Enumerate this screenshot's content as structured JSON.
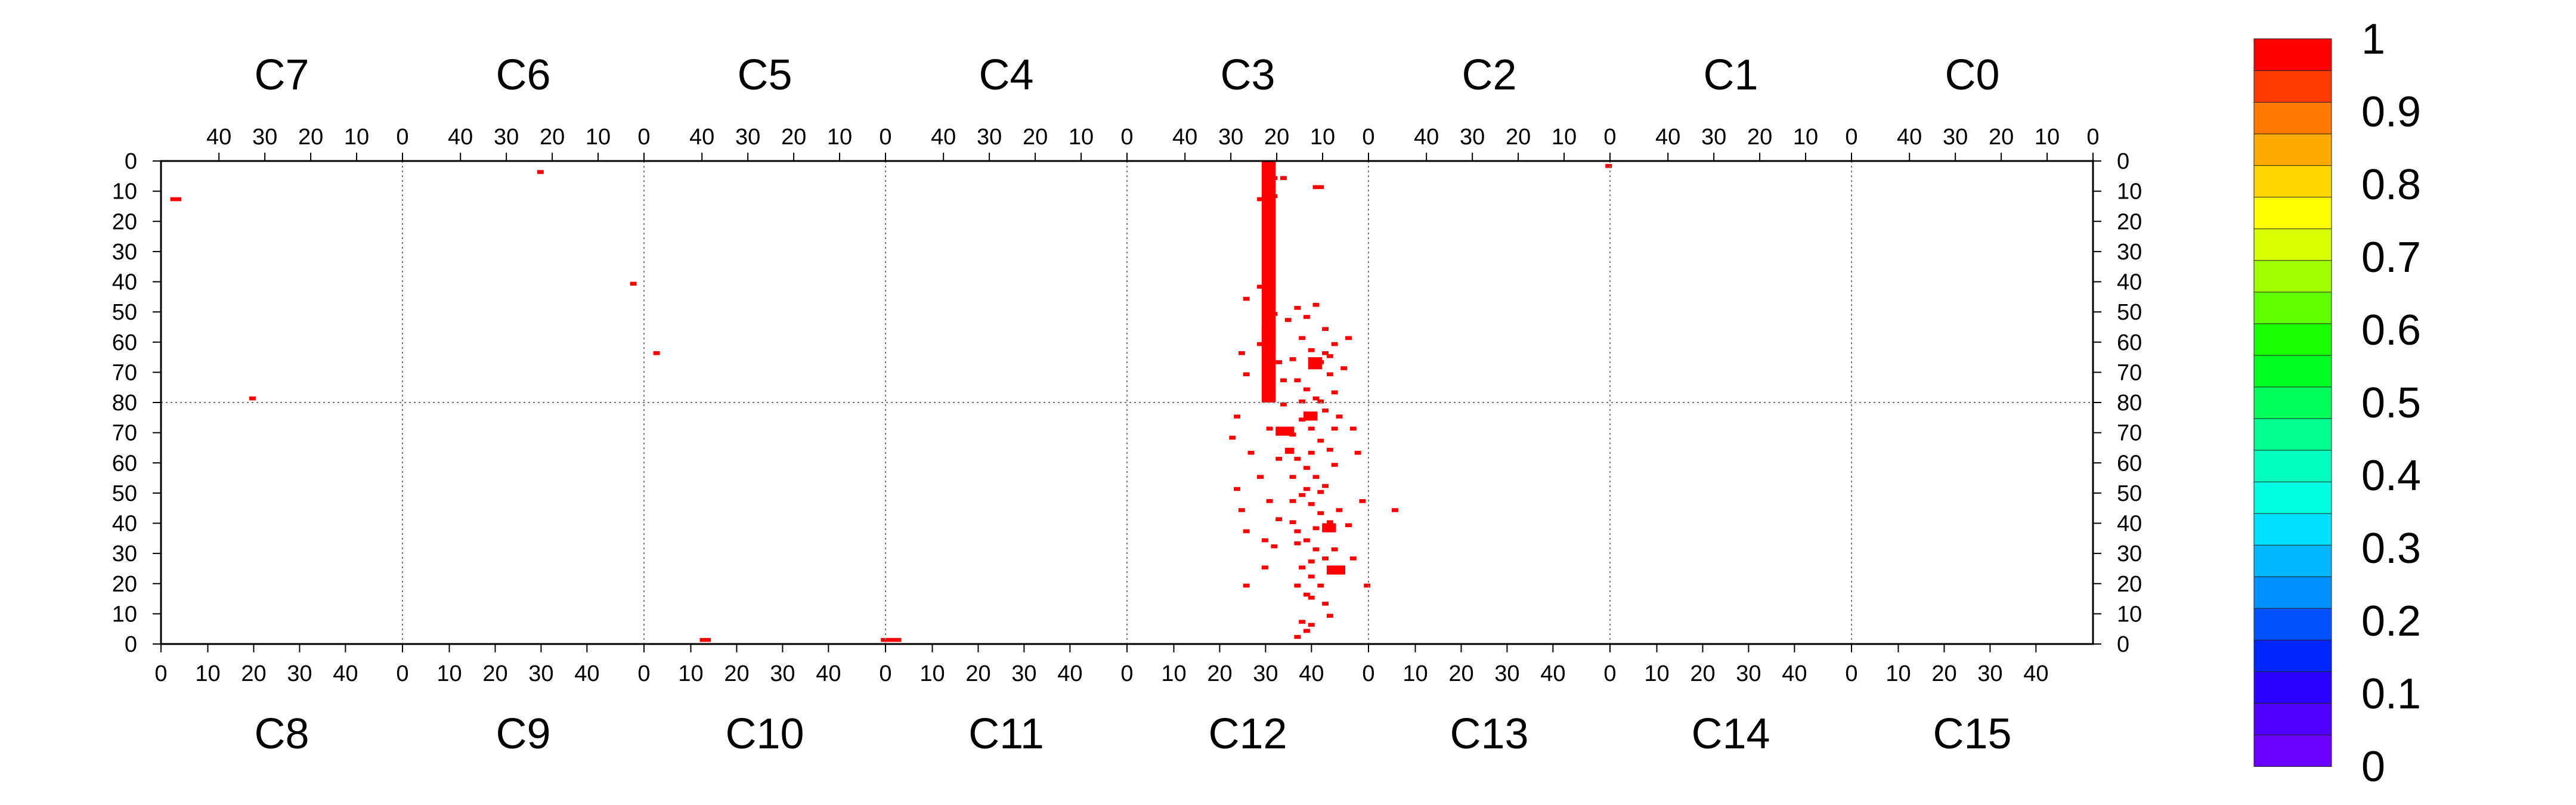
{
  "chart_data": {
    "type": "heatmap",
    "title": "",
    "top_chip_labels": [
      "C7",
      "C6",
      "C5",
      "C4",
      "C3",
      "C2",
      "C1",
      "C0"
    ],
    "bottom_chip_labels": [
      "C8",
      "C9",
      "C10",
      "C11",
      "C12",
      "C13",
      "C14",
      "C15"
    ],
    "top_column_ticks": [
      "40",
      "30",
      "20",
      "10",
      "0"
    ],
    "bottom_column_ticks": [
      "0",
      "10",
      "20",
      "30",
      "40"
    ],
    "row_ticks": [
      "0",
      "10",
      "20",
      "30",
      "40",
      "50",
      "60",
      "70",
      "80",
      "70",
      "60",
      "50",
      "40",
      "30",
      "20",
      "10",
      "0"
    ],
    "x_range": [
      0,
      416
    ],
    "y_range": [
      0,
      160
    ],
    "z_range": [
      0,
      1
    ],
    "grid": true,
    "palette_ticks": [
      "1",
      "0.9",
      "0.8",
      "0.7",
      "0.6",
      "0.5",
      "0.4",
      "0.3",
      "0.2",
      "0.1",
      "0"
    ],
    "palette_colors": [
      "#6a00ff",
      "#4f00ff",
      "#2a00ff",
      "#0026ff",
      "#0052ff",
      "#0090ff",
      "#00b8ff",
      "#00e0ff",
      "#00ffe0",
      "#00ffbe",
      "#00ff8c",
      "#00ff5a",
      "#00ff20",
      "#1aff00",
      "#60ff00",
      "#a0ff00",
      "#d8ff00",
      "#ffff00",
      "#ffd600",
      "#ffaa00",
      "#ff7a00",
      "#ff3a00",
      "#ff0000"
    ],
    "point_color": "#ff0000",
    "hits": [
      [
        2,
        12
      ],
      [
        3,
        12
      ],
      [
        19,
        78
      ],
      [
        81,
        3
      ],
      [
        101,
        40
      ],
      [
        106,
        63
      ],
      [
        116,
        158
      ],
      [
        117,
        158
      ],
      [
        155,
        158
      ],
      [
        156,
        158
      ],
      [
        157,
        158
      ],
      [
        158,
        158
      ],
      [
        236,
        12
      ],
      [
        239,
        5
      ],
      [
        241,
        5
      ],
      [
        239,
        11
      ],
      [
        248,
        8
      ],
      [
        249,
        8
      ],
      [
        311,
        1
      ],
      [
        233,
        140
      ],
      [
        239,
        127
      ],
      [
        237,
        125
      ],
      [
        233,
        122
      ],
      [
        238,
        112
      ],
      [
        231,
        108
      ],
      [
        236,
        104
      ],
      [
        240,
        98
      ],
      [
        238,
        88
      ],
      [
        231,
        84
      ],
      [
        241,
        80
      ],
      [
        238,
        75
      ],
      [
        233,
        70
      ],
      [
        240,
        66
      ],
      [
        236,
        60
      ],
      [
        237,
        55
      ],
      [
        242,
        52
      ],
      [
        233,
        45
      ],
      [
        236,
        41
      ],
      [
        237,
        134
      ],
      [
        240,
        118
      ],
      [
        232,
        115
      ],
      [
        234,
        96
      ],
      [
        230,
        91
      ],
      [
        241,
        72
      ],
      [
        232,
        63
      ],
      [
        239,
        50
      ],
      [
        244,
        48
      ],
      [
        246,
        51
      ],
      [
        248,
        47
      ],
      [
        250,
        55
      ],
      [
        245,
        58
      ],
      [
        247,
        62
      ],
      [
        249,
        66
      ],
      [
        251,
        70
      ],
      [
        244,
        72
      ],
      [
        246,
        75
      ],
      [
        248,
        78
      ],
      [
        250,
        82
      ],
      [
        245,
        85
      ],
      [
        247,
        88
      ],
      [
        249,
        92
      ],
      [
        251,
        95
      ],
      [
        244,
        98
      ],
      [
        246,
        101
      ],
      [
        248,
        104
      ],
      [
        250,
        107
      ],
      [
        245,
        110
      ],
      [
        247,
        113
      ],
      [
        249,
        116
      ],
      [
        251,
        119
      ],
      [
        244,
        122
      ],
      [
        246,
        125
      ],
      [
        248,
        128
      ],
      [
        250,
        131
      ],
      [
        245,
        134
      ],
      [
        247,
        137
      ],
      [
        249,
        140
      ],
      [
        252,
        60
      ],
      [
        252,
        76
      ],
      [
        252,
        100
      ],
      [
        253,
        115
      ],
      [
        243,
        65
      ],
      [
        243,
        90
      ],
      [
        243,
        112
      ],
      [
        252,
        128
      ],
      [
        244,
        140
      ],
      [
        253,
        84
      ],
      [
        247,
        96
      ],
      [
        245,
        79
      ],
      [
        249,
        109
      ],
      [
        251,
        64
      ],
      [
        246,
        143
      ],
      [
        250,
        146
      ],
      [
        243,
        104
      ],
      [
        248,
        121
      ],
      [
        255,
        58
      ],
      [
        256,
        88
      ],
      [
        258,
        112
      ],
      [
        255,
        120
      ],
      [
        254,
        68
      ],
      [
        257,
        96
      ],
      [
        256,
        131
      ],
      [
        247,
        144
      ],
      [
        245,
        152
      ],
      [
        246,
        155
      ],
      [
        247,
        153
      ],
      [
        244,
        157
      ],
      [
        265,
        115
      ],
      [
        259,
        140
      ],
      [
        251,
        150
      ],
      [
        248,
        67
      ],
      [
        249,
        79
      ],
      [
        246,
        108
      ],
      [
        244,
        126
      ],
      [
        250,
        63
      ],
      [
        252,
        88
      ],
      [
        243,
        119
      ],
      [
        247,
        132
      ]
    ],
    "hit_blocks": [
      [
        237,
        0,
        3,
        80
      ],
      [
        237,
        55,
        3,
        8
      ],
      [
        247,
        65,
        3,
        4
      ],
      [
        246,
        83,
        3,
        3
      ],
      [
        240,
        88,
        4,
        3
      ],
      [
        250,
        120,
        3,
        3
      ],
      [
        251,
        134,
        4,
        3
      ],
      [
        242,
        95,
        2,
        2
      ]
    ]
  }
}
